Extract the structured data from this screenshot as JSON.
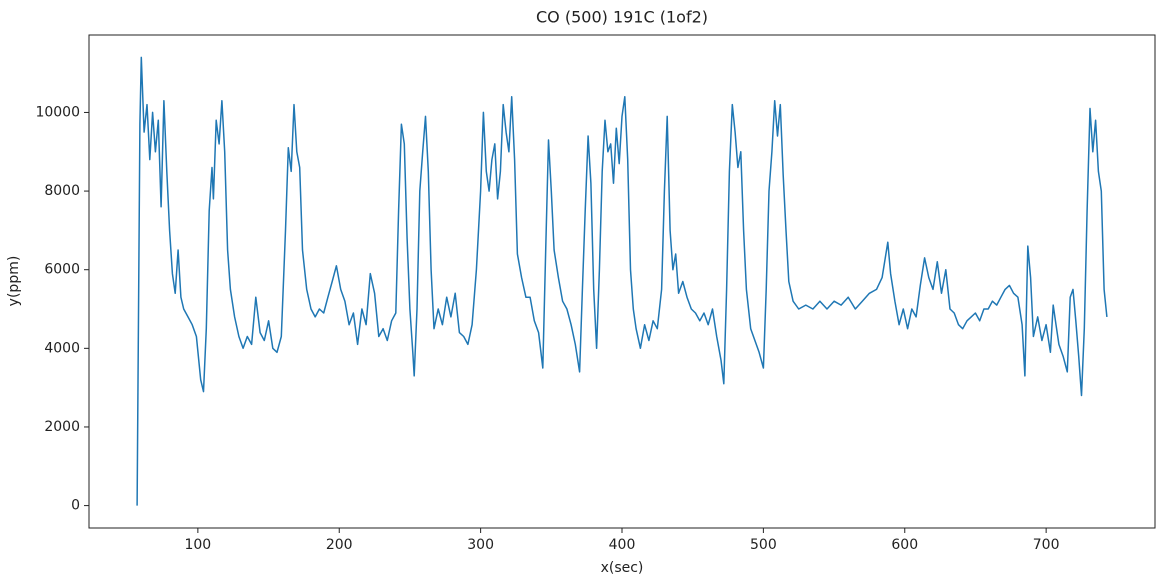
{
  "chart_data": {
    "type": "line",
    "title": "CO (500) 191C (1of2)",
    "x_label": "x(sec)",
    "y_label": "y(ppm)",
    "x": [
      57,
      59,
      60,
      62,
      64,
      66,
      68,
      70,
      72,
      74,
      76,
      78,
      80,
      82,
      84,
      86,
      88,
      90,
      93,
      96,
      99,
      102,
      104,
      106,
      108,
      110,
      111,
      113,
      115,
      117,
      119,
      121,
      123,
      126,
      129,
      132,
      135,
      138,
      141,
      144,
      147,
      150,
      153,
      156,
      159,
      162,
      164,
      166,
      168,
      170,
      172,
      174,
      177,
      180,
      183,
      186,
      189,
      192,
      195,
      198,
      201,
      204,
      207,
      210,
      213,
      216,
      219,
      222,
      225,
      228,
      231,
      234,
      237,
      240,
      242,
      244,
      246,
      248,
      250,
      252,
      253,
      255,
      257,
      259,
      261,
      263,
      265,
      267,
      270,
      273,
      276,
      279,
      282,
      285,
      288,
      291,
      294,
      297,
      300,
      302,
      304,
      306,
      308,
      310,
      312,
      314,
      316,
      318,
      320,
      322,
      324,
      326,
      329,
      332,
      335,
      338,
      341,
      344,
      346,
      348,
      350,
      352,
      355,
      358,
      361,
      364,
      367,
      370,
      372,
      374,
      376,
      378,
      380,
      382,
      384,
      386,
      388,
      390,
      392,
      394,
      396,
      398,
      400,
      402,
      404,
      406,
      408,
      410,
      413,
      416,
      419,
      422,
      425,
      428,
      430,
      432,
      434,
      436,
      438,
      440,
      443,
      446,
      449,
      452,
      455,
      458,
      461,
      464,
      467,
      470,
      472,
      474,
      476,
      478,
      480,
      482,
      484,
      486,
      488,
      491,
      494,
      497,
      500,
      502,
      504,
      506,
      508,
      510,
      512,
      514,
      516,
      518,
      521,
      525,
      530,
      535,
      540,
      545,
      550,
      555,
      560,
      565,
      570,
      575,
      580,
      584,
      588,
      590,
      593,
      596,
      599,
      602,
      605,
      608,
      611,
      614,
      617,
      620,
      623,
      626,
      629,
      632,
      635,
      638,
      641,
      644,
      647,
      650,
      653,
      656,
      659,
      662,
      665,
      668,
      671,
      674,
      677,
      680,
      683,
      685,
      687,
      689,
      691,
      694,
      697,
      700,
      703,
      705,
      707,
      709,
      712,
      715,
      717,
      719,
      721,
      723,
      725,
      727,
      729,
      731,
      733,
      735,
      737,
      739,
      741,
      743
    ],
    "series": [
      {
        "color": "#1f77b4",
        "values": [
          0,
          9700,
          11400,
          9500,
          10200,
          8800,
          10000,
          9000,
          9800,
          7600,
          10300,
          8500,
          7000,
          5900,
          5400,
          6500,
          5300,
          5000,
          4800,
          4600,
          4300,
          3200,
          2900,
          4500,
          7500,
          8600,
          7800,
          9800,
          9200,
          10300,
          9000,
          6500,
          5500,
          4800,
          4300,
          4000,
          4300,
          4100,
          5300,
          4400,
          4200,
          4700,
          4000,
          3900,
          4300,
          7000,
          9100,
          8500,
          10200,
          9000,
          8600,
          6500,
          5500,
          5000,
          4800,
          5000,
          4900,
          5300,
          5700,
          6100,
          5500,
          5200,
          4600,
          4900,
          4100,
          5000,
          4600,
          5900,
          5400,
          4300,
          4500,
          4200,
          4700,
          4900,
          7500,
          9700,
          9200,
          6800,
          5000,
          3900,
          3300,
          5000,
          8000,
          9000,
          9900,
          8500,
          6000,
          4500,
          5000,
          4600,
          5300,
          4800,
          5400,
          4400,
          4300,
          4100,
          4600,
          6000,
          8000,
          10000,
          8500,
          8000,
          8800,
          9200,
          7800,
          8500,
          10200,
          9500,
          9000,
          10400,
          8800,
          6400,
          5800,
          5300,
          5300,
          4700,
          4400,
          3500,
          6500,
          9300,
          8000,
          6500,
          5800,
          5200,
          5000,
          4600,
          4100,
          3400,
          5500,
          7500,
          9400,
          8200,
          5500,
          4000,
          6000,
          8500,
          9800,
          9000,
          9200,
          8200,
          9600,
          8700,
          9900,
          10400,
          8800,
          6000,
          5000,
          4500,
          4000,
          4600,
          4200,
          4700,
          4500,
          5500,
          8000,
          9900,
          7000,
          6000,
          6400,
          5400,
          5700,
          5300,
          5000,
          4900,
          4700,
          4900,
          4600,
          5000,
          4300,
          3700,
          3100,
          5500,
          8500,
          10200,
          9500,
          8600,
          9000,
          7000,
          5500,
          4500,
          4200,
          3900,
          3500,
          5500,
          8000,
          9000,
          10300,
          9400,
          10200,
          8400,
          7000,
          5700,
          5200,
          5000,
          5100,
          5000,
          5200,
          5000,
          5200,
          5100,
          5300,
          5000,
          5200,
          5400,
          5500,
          5800,
          6700,
          5900,
          5200,
          4600,
          5000,
          4500,
          5000,
          4800,
          5600,
          6300,
          5800,
          5500,
          6200,
          5400,
          6000,
          5000,
          4900,
          4600,
          4500,
          4700,
          4800,
          4900,
          4700,
          5000,
          5000,
          5200,
          5100,
          5300,
          5500,
          5600,
          5400,
          5300,
          4600,
          3300,
          6600,
          5800,
          4300,
          4800,
          4200,
          4600,
          3900,
          5100,
          4600,
          4100,
          3800,
          3400,
          5300,
          5500,
          4700,
          3800,
          2800,
          4500,
          7500,
          10100,
          9000,
          9800,
          8500,
          8000,
          5500,
          4800
        ]
      }
    ],
    "xlim": [
      23,
      777
    ],
    "ylim": [
      -570,
      11970
    ],
    "xticks": [
      100,
      200,
      300,
      400,
      500,
      600,
      700
    ],
    "yticks": [
      0,
      2000,
      4000,
      6000,
      8000,
      10000
    ]
  }
}
